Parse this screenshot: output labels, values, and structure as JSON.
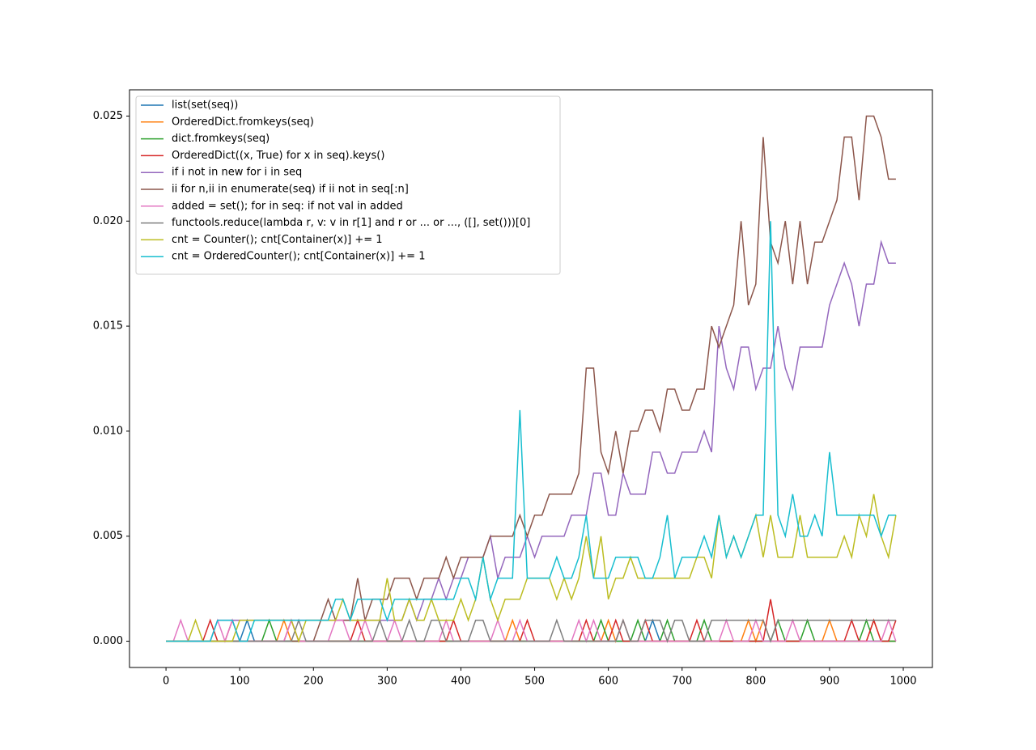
{
  "chart_data": {
    "type": "line",
    "x": [
      0,
      10,
      20,
      30,
      40,
      50,
      60,
      70,
      80,
      90,
      100,
      110,
      120,
      130,
      140,
      150,
      160,
      170,
      180,
      190,
      200,
      210,
      220,
      230,
      240,
      250,
      260,
      270,
      280,
      290,
      300,
      310,
      320,
      330,
      340,
      350,
      360,
      370,
      380,
      390,
      400,
      410,
      420,
      430,
      440,
      450,
      460,
      470,
      480,
      490,
      500,
      510,
      520,
      530,
      540,
      550,
      560,
      570,
      580,
      590,
      600,
      610,
      620,
      630,
      640,
      650,
      660,
      670,
      680,
      690,
      700,
      710,
      720,
      730,
      740,
      750,
      760,
      770,
      780,
      790,
      800,
      810,
      820,
      830,
      840,
      850,
      860,
      870,
      880,
      890,
      900,
      910,
      920,
      930,
      940,
      950,
      960,
      970,
      980,
      990
    ],
    "xlim": [
      -49.5,
      1039.5
    ],
    "xticks": [
      0,
      100,
      200,
      300,
      400,
      500,
      600,
      700,
      800,
      900,
      1000
    ],
    "ylim": [
      -0.00125,
      0.02625
    ],
    "yticks": [
      {
        "value": 0,
        "label": "0.000"
      },
      {
        "value": 0.005,
        "label": "0.005"
      },
      {
        "value": 0.01,
        "label": "0.010"
      },
      {
        "value": 0.015,
        "label": "0.015"
      },
      {
        "value": 0.02,
        "label": "0.020"
      },
      {
        "value": 0.025,
        "label": "0.025"
      }
    ],
    "legend": "upper left",
    "series": [
      {
        "name": "list(set(seq))",
        "color": "#1f77b4",
        "values": [
          0,
          0,
          0,
          0,
          0,
          0,
          0,
          0,
          0,
          0,
          0,
          0.001,
          0,
          0,
          0,
          0,
          0,
          0,
          0,
          0,
          0,
          0,
          0,
          0,
          0,
          0,
          0,
          0,
          0,
          0,
          0,
          0,
          0,
          0,
          0,
          0,
          0,
          0,
          0,
          0,
          0,
          0,
          0,
          0,
          0,
          0,
          0,
          0,
          0,
          0,
          0,
          0,
          0,
          0,
          0,
          0,
          0,
          0,
          0,
          0,
          0,
          0,
          0,
          0,
          0,
          0,
          0.001,
          0,
          0,
          0,
          0,
          0,
          0,
          0,
          0,
          0,
          0,
          0,
          0,
          0,
          0,
          0,
          0,
          0,
          0,
          0,
          0,
          0,
          0,
          0,
          0,
          0,
          0,
          0,
          0,
          0,
          0,
          0,
          0,
          0
        ]
      },
      {
        "name": "OrderedDict.fromkeys(seq)",
        "color": "#ff7f0e",
        "values": [
          0,
          0,
          0,
          0,
          0,
          0,
          0,
          0,
          0,
          0,
          0,
          0,
          0,
          0,
          0,
          0,
          0.001,
          0,
          0,
          0,
          0,
          0,
          0,
          0,
          0,
          0,
          0,
          0,
          0,
          0,
          0,
          0,
          0,
          0,
          0,
          0,
          0,
          0,
          0,
          0,
          0,
          0,
          0,
          0,
          0,
          0,
          0,
          0.001,
          0,
          0,
          0,
          0,
          0,
          0,
          0,
          0,
          0,
          0,
          0,
          0,
          0.001,
          0,
          0.001,
          0,
          0,
          0,
          0,
          0,
          0,
          0,
          0,
          0,
          0,
          0,
          0,
          0,
          0,
          0,
          0,
          0.001,
          0,
          0.001,
          0,
          0,
          0,
          0,
          0,
          0,
          0,
          0,
          0.001,
          0,
          0,
          0,
          0,
          0,
          0.001,
          0,
          0,
          0
        ]
      },
      {
        "name": "dict.fromkeys(seq)",
        "color": "#2ca02c",
        "values": [
          0,
          0,
          0,
          0,
          0,
          0,
          0,
          0,
          0,
          0,
          0,
          0,
          0,
          0,
          0.001,
          0,
          0,
          0,
          0,
          0,
          0,
          0,
          0,
          0,
          0,
          0,
          0,
          0,
          0,
          0,
          0,
          0,
          0,
          0,
          0,
          0,
          0,
          0,
          0,
          0,
          0,
          0,
          0,
          0,
          0,
          0,
          0,
          0,
          0,
          0,
          0,
          0,
          0,
          0,
          0,
          0,
          0,
          0,
          0,
          0.001,
          0,
          0,
          0,
          0,
          0.001,
          0,
          0,
          0,
          0.001,
          0,
          0,
          0,
          0,
          0.001,
          0,
          0,
          0,
          0,
          0,
          0,
          0,
          0,
          0,
          0.001,
          0,
          0,
          0,
          0.001,
          0,
          0,
          0,
          0,
          0,
          0,
          0,
          0.001,
          0,
          0,
          0,
          0
        ]
      },
      {
        "name": "OrderedDict((x, True) for x in seq).keys()",
        "color": "#d62728",
        "values": [
          0,
          0,
          0,
          0,
          0,
          0,
          0.001,
          0,
          0,
          0.001,
          0,
          0,
          0,
          0,
          0,
          0,
          0,
          0.001,
          0,
          0,
          0,
          0,
          0,
          0,
          0,
          0,
          0.001,
          0,
          0,
          0,
          0,
          0,
          0,
          0,
          0,
          0,
          0,
          0,
          0,
          0.001,
          0,
          0,
          0,
          0,
          0,
          0,
          0,
          0,
          0,
          0.001,
          0,
          0,
          0,
          0,
          0,
          0,
          0,
          0.001,
          0,
          0,
          0,
          0.001,
          0,
          0,
          0,
          0.001,
          0,
          0,
          0,
          0,
          0,
          0,
          0.001,
          0,
          0,
          0,
          0,
          0,
          0,
          0,
          0,
          0,
          0.002,
          0,
          0,
          0,
          0,
          0,
          0,
          0,
          0,
          0,
          0,
          0.001,
          0,
          0,
          0.001,
          0,
          0,
          0.001
        ]
      },
      {
        "name": "if i not in new for i in seq",
        "color": "#9467bd",
        "values": [
          0,
          0,
          0,
          0,
          0,
          0,
          0,
          0.001,
          0.001,
          0.001,
          0.001,
          0.001,
          0.001,
          0.001,
          0.001,
          0.001,
          0.001,
          0.001,
          0.001,
          0.001,
          0.001,
          0.001,
          0.001,
          0.001,
          0.001,
          0.001,
          0.001,
          0.001,
          0.001,
          0.001,
          0.001,
          0.001,
          0.001,
          0.002,
          0.001,
          0.002,
          0.002,
          0.003,
          0.002,
          0.003,
          0.003,
          0.004,
          0.004,
          0.004,
          0.005,
          0.003,
          0.004,
          0.004,
          0.004,
          0.005,
          0.004,
          0.005,
          0.005,
          0.005,
          0.005,
          0.006,
          0.006,
          0.006,
          0.008,
          0.008,
          0.006,
          0.006,
          0.008,
          0.007,
          0.007,
          0.007,
          0.009,
          0.009,
          0.008,
          0.008,
          0.009,
          0.009,
          0.009,
          0.01,
          0.009,
          0.015,
          0.013,
          0.012,
          0.014,
          0.014,
          0.012,
          0.013,
          0.013,
          0.015,
          0.013,
          0.012,
          0.014,
          0.014,
          0.014,
          0.014,
          0.016,
          0.017,
          0.018,
          0.017,
          0.015,
          0.017,
          0.017,
          0.019,
          0.018,
          0.018
        ]
      },
      {
        "name": "ii for n,ii in enumerate(seq) if ii not in seq[:n]",
        "color": "#8c564b",
        "values": [
          0,
          0,
          0,
          0,
          0,
          0,
          0,
          0,
          0,
          0,
          0,
          0,
          0,
          0,
          0,
          0,
          0,
          0,
          0,
          0,
          0,
          0.001,
          0.002,
          0.001,
          0.001,
          0.001,
          0.003,
          0.001,
          0.002,
          0.002,
          0.002,
          0.003,
          0.003,
          0.003,
          0.002,
          0.003,
          0.003,
          0.003,
          0.004,
          0.003,
          0.004,
          0.004,
          0.004,
          0.004,
          0.005,
          0.005,
          0.005,
          0.005,
          0.006,
          0.005,
          0.006,
          0.006,
          0.007,
          0.007,
          0.007,
          0.007,
          0.008,
          0.013,
          0.013,
          0.009,
          0.008,
          0.01,
          0.008,
          0.01,
          0.01,
          0.011,
          0.011,
          0.01,
          0.012,
          0.012,
          0.011,
          0.011,
          0.012,
          0.012,
          0.015,
          0.014,
          0.015,
          0.016,
          0.02,
          0.016,
          0.017,
          0.024,
          0.019,
          0.018,
          0.02,
          0.017,
          0.02,
          0.017,
          0.019,
          0.019,
          0.02,
          0.021,
          0.024,
          0.024,
          0.021,
          0.025,
          0.025,
          0.024,
          0.022,
          0.022
        ]
      },
      {
        "name": "added = set(); for in seq: if not val in added",
        "color": "#e377c2",
        "values": [
          0,
          0,
          0.001,
          0,
          0,
          0,
          0,
          0.001,
          0,
          0.001,
          0,
          0,
          0,
          0,
          0,
          0,
          0,
          0.001,
          0,
          0,
          0,
          0,
          0,
          0.001,
          0.001,
          0,
          0,
          0.001,
          0,
          0,
          0,
          0.001,
          0,
          0,
          0,
          0,
          0,
          0,
          0.001,
          0,
          0,
          0,
          0,
          0,
          0,
          0.001,
          0,
          0,
          0.001,
          0,
          0,
          0,
          0,
          0,
          0,
          0,
          0.001,
          0,
          0.001,
          0,
          0,
          0,
          0.001,
          0,
          0,
          0,
          0,
          0,
          0,
          0,
          0,
          0,
          0,
          0,
          0,
          0,
          0.001,
          0,
          0,
          0,
          0.001,
          0,
          0,
          0,
          0,
          0.001,
          0,
          0,
          0,
          0,
          0,
          0,
          0,
          0,
          0,
          0,
          0,
          0,
          0.001,
          0
        ]
      },
      {
        "name": "functools.reduce(lambda r, v: v in r[1] and r or ... or ..., ([], set()))[0]",
        "color": "#7f7f7f",
        "values": [
          0,
          0,
          0,
          0,
          0,
          0,
          0,
          0,
          0,
          0,
          0,
          0,
          0,
          0,
          0,
          0,
          0,
          0,
          0.001,
          0,
          0,
          0,
          0,
          0,
          0,
          0,
          0,
          0,
          0,
          0.001,
          0,
          0,
          0,
          0.001,
          0,
          0,
          0.001,
          0.001,
          0,
          0,
          0,
          0,
          0.001,
          0.001,
          0,
          0,
          0,
          0,
          0,
          0,
          0,
          0,
          0,
          0.001,
          0,
          0,
          0,
          0,
          0,
          0,
          0,
          0,
          0.001,
          0,
          0,
          0.001,
          0.001,
          0.001,
          0,
          0.001,
          0.001,
          0,
          0,
          0,
          0.001,
          0.001,
          0.001,
          0.001,
          0.001,
          0.001,
          0.001,
          0.001,
          0,
          0.001,
          0.001,
          0.001,
          0.001,
          0.001,
          0.001,
          0.001,
          0.001,
          0.001,
          0.001,
          0.001,
          0.001,
          0.001,
          0.001,
          0.001,
          0.001,
          0.001
        ]
      },
      {
        "name": "cnt = Counter(); cnt[Container(x)] += 1",
        "color": "#bcbd22",
        "values": [
          0,
          0,
          0,
          0,
          0.001,
          0,
          0,
          0,
          0,
          0,
          0.001,
          0.001,
          0.001,
          0.001,
          0.001,
          0.001,
          0.001,
          0.001,
          0,
          0.001,
          0.001,
          0.001,
          0.001,
          0.001,
          0.002,
          0.001,
          0.001,
          0.001,
          0.001,
          0.001,
          0.003,
          0.001,
          0.001,
          0.002,
          0.001,
          0.001,
          0.002,
          0.001,
          0.001,
          0.001,
          0.002,
          0.001,
          0.002,
          0.004,
          0.002,
          0.001,
          0.002,
          0.002,
          0.002,
          0.003,
          0.003,
          0.003,
          0.003,
          0.002,
          0.003,
          0.002,
          0.003,
          0.005,
          0.003,
          0.005,
          0.002,
          0.003,
          0.003,
          0.004,
          0.003,
          0.003,
          0.003,
          0.003,
          0.003,
          0.003,
          0.003,
          0.003,
          0.004,
          0.004,
          0.003,
          0.006,
          0.004,
          0.005,
          0.004,
          0.005,
          0.006,
          0.004,
          0.006,
          0.004,
          0.004,
          0.004,
          0.006,
          0.004,
          0.004,
          0.004,
          0.004,
          0.004,
          0.005,
          0.004,
          0.006,
          0.005,
          0.007,
          0.005,
          0.004,
          0.006
        ]
      },
      {
        "name": "cnt = OrderedCounter(); cnt[Container(x)] += 1",
        "color": "#17becf",
        "values": [
          0,
          0,
          0,
          0,
          0,
          0,
          0,
          0.001,
          0.001,
          0.001,
          0,
          0,
          0.001,
          0.001,
          0.001,
          0.001,
          0.001,
          0.001,
          0.001,
          0.001,
          0.001,
          0.001,
          0.001,
          0.002,
          0.002,
          0.001,
          0.002,
          0.002,
          0.002,
          0.002,
          0.001,
          0.002,
          0.002,
          0.002,
          0.002,
          0.002,
          0.002,
          0.002,
          0.002,
          0.002,
          0.003,
          0.003,
          0.002,
          0.004,
          0.002,
          0.003,
          0.003,
          0.003,
          0.011,
          0.003,
          0.003,
          0.003,
          0.003,
          0.004,
          0.003,
          0.003,
          0.004,
          0.006,
          0.003,
          0.003,
          0.003,
          0.004,
          0.004,
          0.004,
          0.004,
          0.003,
          0.003,
          0.004,
          0.006,
          0.003,
          0.004,
          0.004,
          0.004,
          0.005,
          0.004,
          0.006,
          0.004,
          0.005,
          0.004,
          0.005,
          0.006,
          0.006,
          0.02,
          0.006,
          0.005,
          0.007,
          0.005,
          0.005,
          0.006,
          0.005,
          0.009,
          0.006,
          0.006,
          0.006,
          0.006,
          0.006,
          0.006,
          0.005,
          0.006,
          0.006
        ]
      }
    ]
  }
}
